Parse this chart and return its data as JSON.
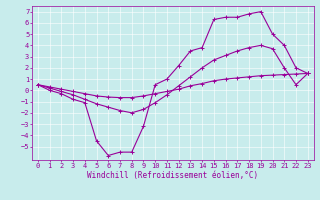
{
  "xlabel": "Windchill (Refroidissement éolien,°C)",
  "bg_color": "#c8ecec",
  "line_color": "#990099",
  "grid_color": "#ffffff",
  "spine_color": "#990099",
  "xlim": [
    -0.5,
    23.5
  ],
  "ylim": [
    -6.2,
    7.5
  ],
  "xticks": [
    0,
    1,
    2,
    3,
    4,
    5,
    6,
    7,
    8,
    9,
    10,
    11,
    12,
    13,
    14,
    15,
    16,
    17,
    18,
    19,
    20,
    21,
    22,
    23
  ],
  "yticks": [
    -5,
    -4,
    -3,
    -2,
    -1,
    0,
    1,
    2,
    3,
    4,
    5,
    6,
    7
  ],
  "line1_x": [
    0,
    1,
    2,
    3,
    4,
    5,
    6,
    7,
    8,
    9,
    10,
    11,
    12,
    13,
    14,
    15,
    16,
    17,
    18,
    19,
    20,
    21,
    22,
    23
  ],
  "line1_y": [
    0.5,
    0.3,
    0.1,
    -0.1,
    -0.3,
    -0.5,
    -0.6,
    -0.65,
    -0.65,
    -0.5,
    -0.3,
    -0.1,
    0.1,
    0.4,
    0.6,
    0.85,
    1.0,
    1.1,
    1.2,
    1.3,
    1.35,
    1.4,
    1.45,
    1.5
  ],
  "line2_x": [
    0,
    1,
    2,
    3,
    4,
    5,
    6,
    7,
    8,
    9,
    10,
    11,
    12,
    13,
    14,
    15,
    16,
    17,
    18,
    19,
    20,
    21,
    22,
    23
  ],
  "line2_y": [
    0.5,
    0.0,
    -0.3,
    -0.8,
    -1.1,
    -4.5,
    -5.8,
    -5.5,
    -5.5,
    -3.2,
    0.5,
    1.0,
    2.2,
    3.5,
    3.8,
    6.3,
    6.5,
    6.5,
    6.8,
    7.0,
    5.0,
    4.0,
    2.0,
    1.5
  ],
  "line3_x": [
    0,
    1,
    2,
    3,
    4,
    5,
    6,
    7,
    8,
    9,
    10,
    11,
    12,
    13,
    14,
    15,
    16,
    17,
    18,
    19,
    20,
    21,
    22,
    23
  ],
  "line3_y": [
    0.5,
    0.2,
    -0.1,
    -0.4,
    -0.8,
    -1.2,
    -1.5,
    -1.8,
    -2.0,
    -1.7,
    -1.1,
    -0.4,
    0.4,
    1.2,
    2.0,
    2.7,
    3.1,
    3.5,
    3.8,
    4.0,
    3.7,
    2.0,
    0.5,
    1.5
  ],
  "tick_fontsize": 5,
  "xlabel_fontsize": 5.5,
  "linewidth": 0.8,
  "markersize": 2.5
}
